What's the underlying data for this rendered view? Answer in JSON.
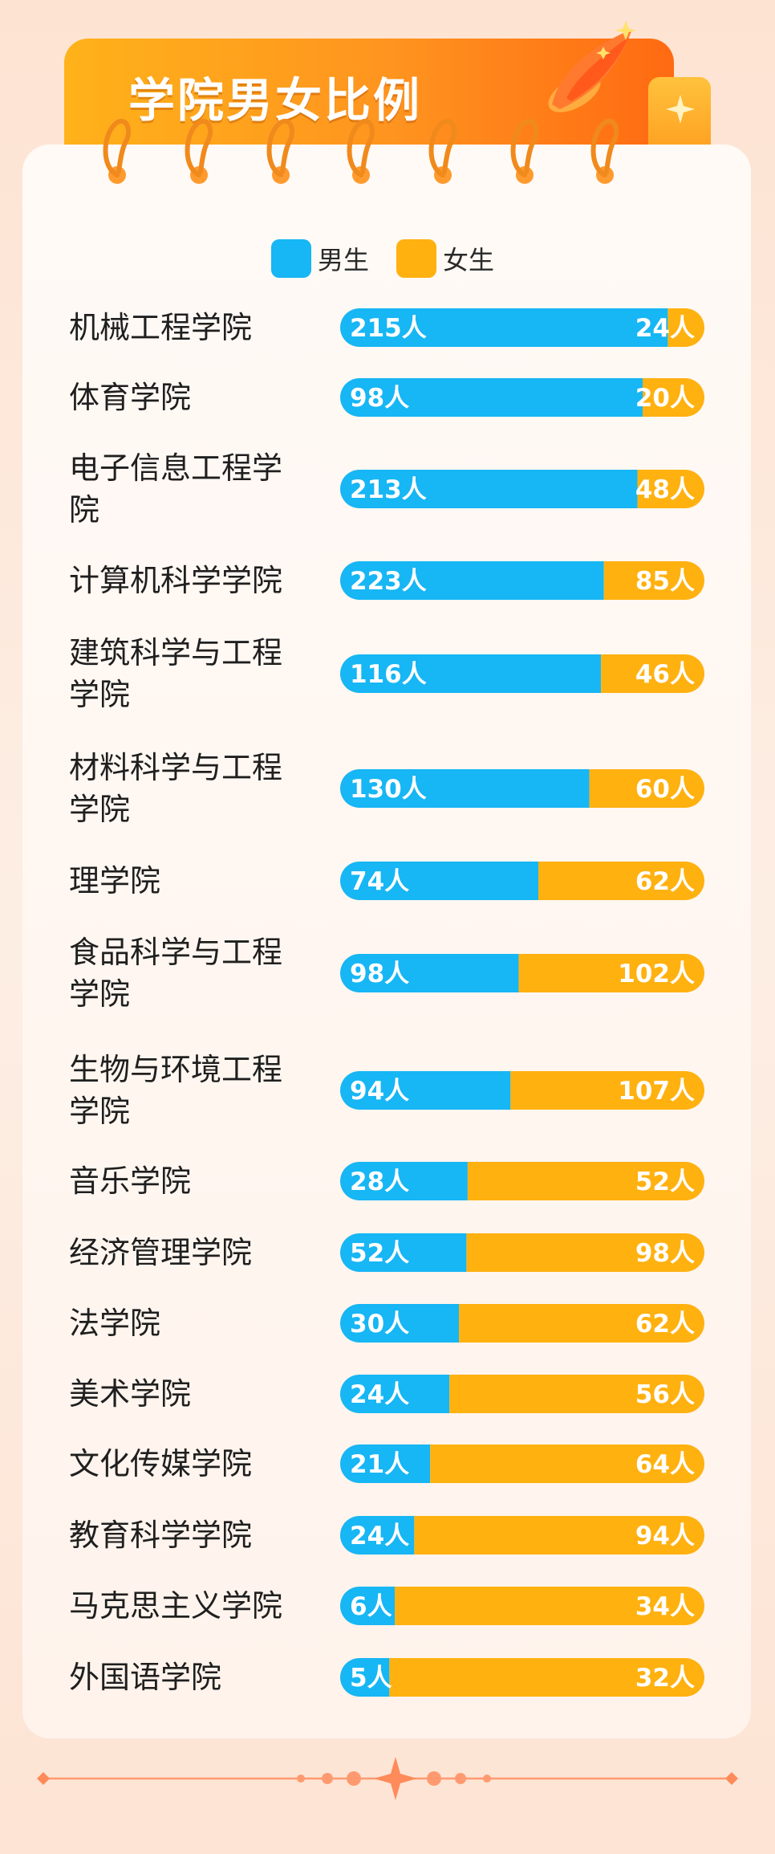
{
  "header": {
    "title": "学院男女比例"
  },
  "colors": {
    "male": "#17b6f4",
    "female": "#ffb110",
    "accent": "#ff8a2a"
  },
  "icons": {
    "header": "rocket-icon",
    "side": "sparkle-icon",
    "footer": "star-divider-icon"
  },
  "chart_data": {
    "type": "bar",
    "orientation": "horizontal",
    "stacked": "100%",
    "legend": {
      "position": "top-center",
      "entries": [
        "男生",
        "女生"
      ]
    },
    "unit": "人",
    "categories": [
      [
        "机械工程学院"
      ],
      [
        "体育学院"
      ],
      [
        "电子信息工程学",
        "院"
      ],
      [
        "计算机科学学院"
      ],
      [
        "建筑科学与工程",
        "学院"
      ],
      [
        "材料科学与工程",
        "学院"
      ],
      [
        "理学院"
      ],
      [
        "食品科学与工程",
        "学院"
      ],
      [
        "生物与环境工程",
        "学院"
      ],
      [
        "音乐学院"
      ],
      [
        "经济管理学院"
      ],
      [
        "法学院"
      ],
      [
        "美术学院"
      ],
      [
        "文化传媒学院"
      ],
      [
        "教育科学学院"
      ],
      [
        "马克思主义学院"
      ],
      [
        "外国语学院"
      ]
    ],
    "series": [
      {
        "name": "男生",
        "values": [
          215,
          98,
          213,
          223,
          116,
          130,
          74,
          98,
          94,
          28,
          52,
          30,
          24,
          21,
          24,
          6,
          5
        ]
      },
      {
        "name": "女生",
        "values": [
          24,
          20,
          48,
          85,
          46,
          60,
          62,
          102,
          107,
          52,
          98,
          62,
          56,
          64,
          94,
          34,
          32
        ]
      }
    ]
  }
}
